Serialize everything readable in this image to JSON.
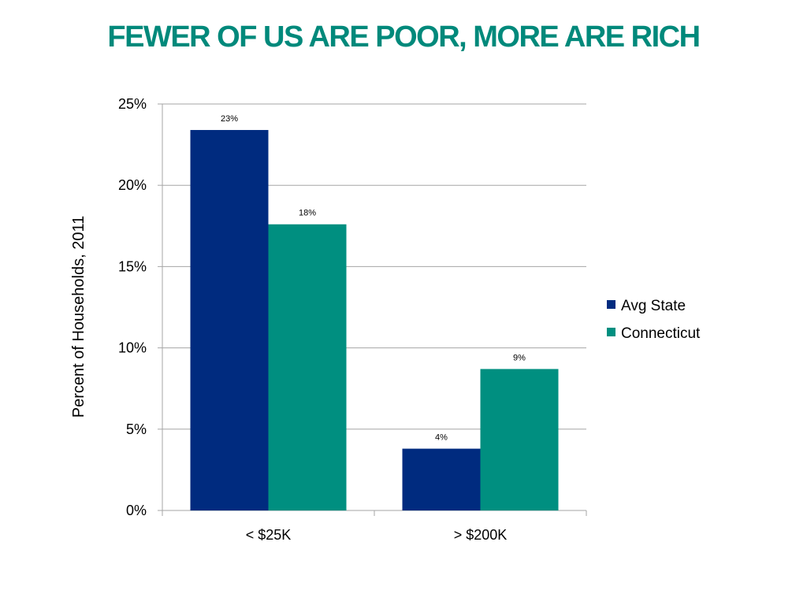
{
  "colors": {
    "title": "#00897b",
    "avg_state": "#002b7f",
    "connecticut": "#008f80",
    "grid": "#a6a6a6"
  },
  "chart_data": {
    "type": "bar",
    "title": "FEWER OF US ARE POOR, MORE ARE RICH",
    "xlabel": "",
    "ylabel": "Percent of Households, 2011",
    "ylim": [
      0,
      25
    ],
    "ytick_values": [
      0,
      5,
      10,
      15,
      20,
      25
    ],
    "ytick_labels": [
      "0%",
      "5%",
      "10%",
      "15%",
      "20%",
      "25%"
    ],
    "categories": [
      "< $25K",
      "> $200K"
    ],
    "grid": true,
    "legend_position": "right",
    "series": [
      {
        "name": "Avg State",
        "values": [
          23.4,
          3.8
        ],
        "labels": [
          "23%",
          "4%"
        ],
        "color_key": "avg_state"
      },
      {
        "name": "Connecticut",
        "values": [
          17.6,
          8.7
        ],
        "labels": [
          "18%",
          "9%"
        ],
        "color_key": "connecticut"
      }
    ]
  }
}
